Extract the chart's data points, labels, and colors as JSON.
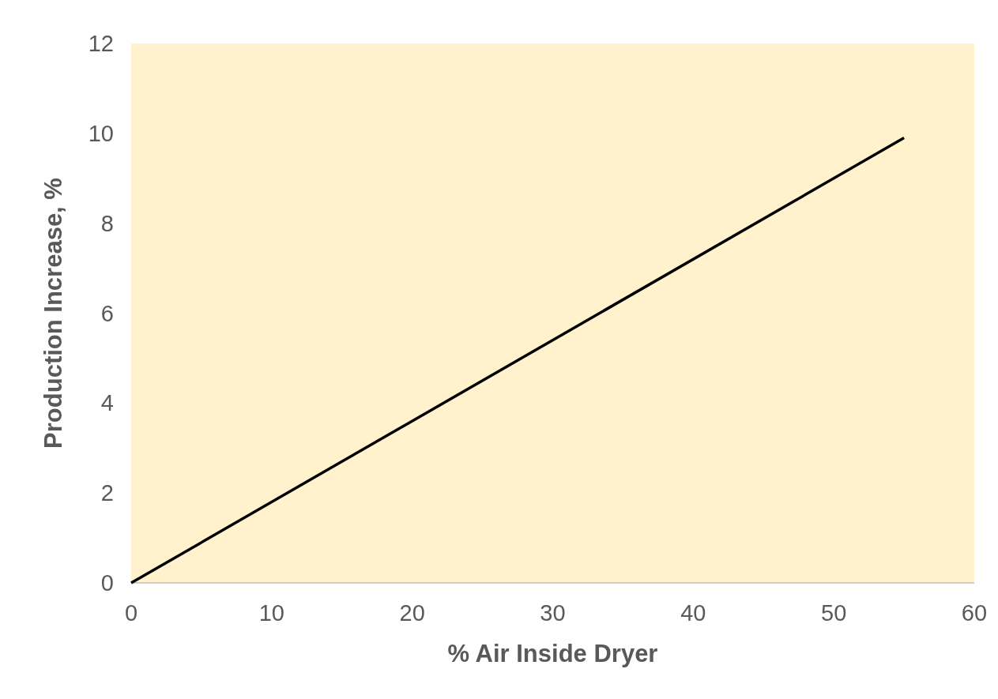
{
  "chart_data": {
    "type": "line",
    "xlabel": "% Air Inside Dryer",
    "ylabel": "Production Increase, %",
    "x": [
      0,
      55
    ],
    "series": [
      {
        "color": "#000000",
        "values": [
          0,
          9.9
        ]
      }
    ],
    "xlim": [
      0,
      60
    ],
    "xticks": [
      0,
      10,
      20,
      30,
      40,
      50,
      60
    ],
    "ylim": [
      0,
      12
    ],
    "yticks": [
      0,
      2,
      4,
      6,
      8,
      10,
      12
    ],
    "grid": false,
    "marker": "none",
    "line_style": "solid"
  }
}
